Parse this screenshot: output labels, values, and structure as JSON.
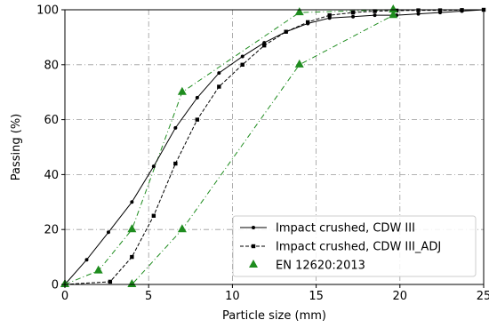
{
  "chart_data": {
    "type": "line",
    "xlabel": "Particle size (mm)",
    "ylabel": "Passing (%)",
    "xlim": [
      0,
      25
    ],
    "ylim": [
      0,
      100
    ],
    "xticks": [
      0,
      5,
      10,
      15,
      20,
      25
    ],
    "yticks": [
      0,
      20,
      40,
      60,
      80,
      100
    ],
    "x_tick_labels": [
      "0",
      "5",
      "10",
      "15",
      "20",
      "25"
    ],
    "y_tick_labels": [
      "0",
      "20",
      "40",
      "60",
      "80",
      "100"
    ],
    "grid": true,
    "legend_position": "lower-right",
    "series": [
      {
        "name": "Impact crushed, CDW III",
        "style": "solid",
        "marker": "circle",
        "color": "#000000",
        "x": [
          0,
          1.3,
          2.6,
          4.0,
          5.3,
          6.6,
          7.9,
          9.2,
          10.6,
          11.9,
          13.2,
          14.5,
          15.8,
          17.2,
          18.5,
          19.8,
          21.1,
          22.4,
          23.7,
          25
        ],
        "y": [
          0,
          9,
          19,
          30,
          43,
          57,
          68,
          77,
          83,
          88,
          92,
          95,
          97,
          97.5,
          98,
          98,
          98.5,
          99,
          99.5,
          100
        ]
      },
      {
        "name": "Impact crushed, CDW III_ADJ",
        "style": "dashed",
        "marker": "square",
        "color": "#000000",
        "x": [
          0,
          2.7,
          4.0,
          5.3,
          6.6,
          7.9,
          9.2,
          10.6,
          11.9,
          13.2,
          14.5,
          15.8,
          17.2,
          18.5,
          19.8,
          21.1,
          22.4,
          23.7,
          25
        ],
        "y": [
          0,
          1,
          10,
          25,
          44,
          60,
          72,
          80,
          87,
          92,
          95.5,
          98,
          99,
          99.5,
          99.7,
          99.8,
          99.8,
          99.9,
          100
        ]
      }
    ],
    "envelope": {
      "name": "EN 12620:2013",
      "marker": "triangle",
      "color": "#1e8c1e",
      "lower": {
        "x": [
          0,
          4,
          7,
          14,
          19.6
        ],
        "y": [
          0,
          0,
          20,
          80,
          98
        ]
      },
      "upper": {
        "x": [
          0,
          2,
          4,
          7,
          14,
          19.6
        ],
        "y": [
          0,
          5,
          20,
          70,
          99,
          100
        ]
      }
    }
  }
}
